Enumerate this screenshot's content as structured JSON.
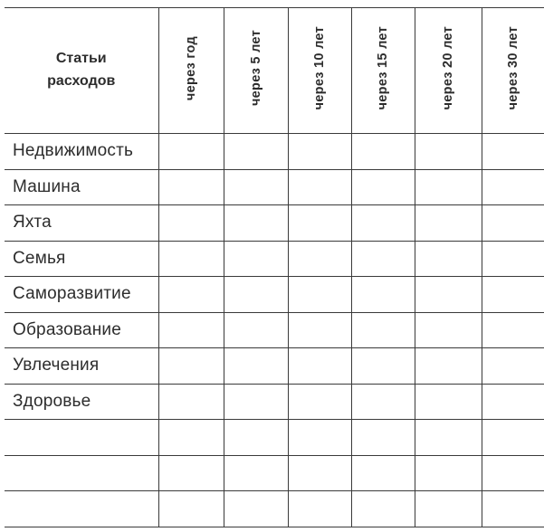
{
  "colors": {
    "ink": "#2d2d2d",
    "grid_line": "#3a3a3a",
    "background": "#ffffff"
  },
  "table": {
    "header_label": "Статьи расходов",
    "columns": [
      "через год",
      "через 5 лет",
      "через 10 лет",
      "через 15 лет",
      "через 20 лет",
      "через 30 лет"
    ],
    "rows": [
      "Недвижимость",
      "Машина",
      "Яхта",
      "Семья",
      "Саморазвитие",
      "Образование",
      "Увлечения",
      "Здоровье",
      "",
      "",
      ""
    ]
  }
}
